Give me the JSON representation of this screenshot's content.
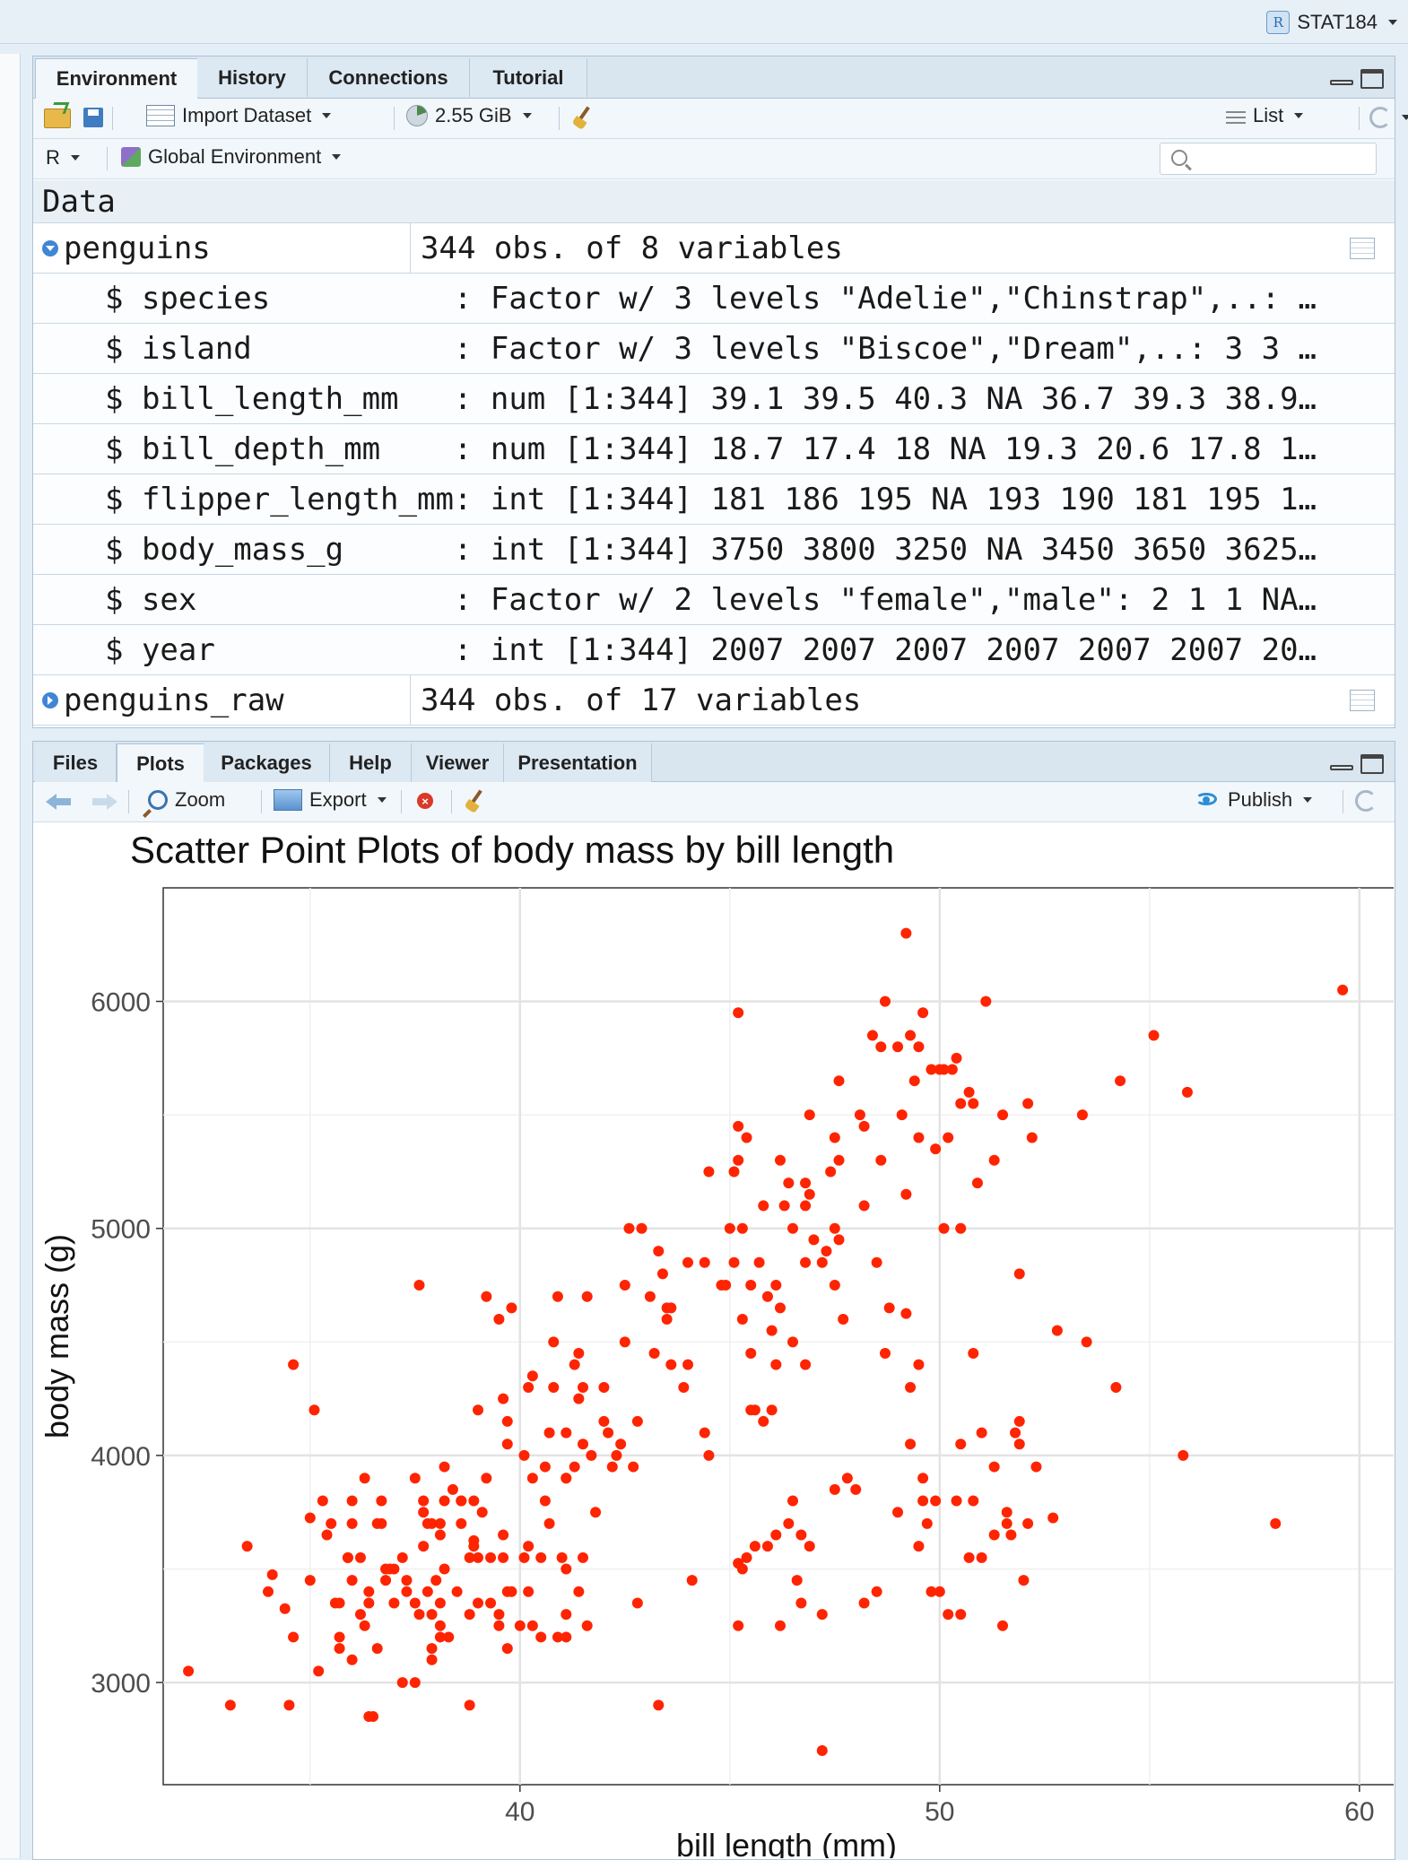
{
  "project": {
    "name": "STAT184"
  },
  "env_pane": {
    "tabs": [
      "Environment",
      "History",
      "Connections",
      "Tutorial"
    ],
    "toolbar": {
      "import_label": "Import Dataset",
      "memory_label": "2.55 GiB",
      "view_mode": "List"
    },
    "language": "R",
    "scope": "Global Environment",
    "search_placeholder": "",
    "section_title": "Data",
    "objects": [
      {
        "name": "penguins",
        "description": "344 obs. of 8 variables",
        "expanded": true,
        "variables": [
          "$ species          : Factor w/ 3 levels \"Adelie\",\"Chinstrap\",..: …",
          "$ island           : Factor w/ 3 levels \"Biscoe\",\"Dream\",..: 3 3 …",
          "$ bill_length_mm   : num [1:344] 39.1 39.5 40.3 NA 36.7 39.3 38.9…",
          "$ bill_depth_mm    : num [1:344] 18.7 17.4 18 NA 19.3 20.6 17.8 1…",
          "$ flipper_length_mm: int [1:344] 181 186 195 NA 193 190 181 195 1…",
          "$ body_mass_g      : int [1:344] 3750 3800 3250 NA 3450 3650 3625…",
          "$ sex              : Factor w/ 2 levels \"female\",\"male\": 2 1 1 NA…",
          "$ year             : int [1:344] 2007 2007 2007 2007 2007 2007 20…"
        ]
      },
      {
        "name": "penguins_raw",
        "description": "344 obs. of 17 variables",
        "expanded": false
      }
    ]
  },
  "plot_pane": {
    "tabs": [
      "Files",
      "Plots",
      "Packages",
      "Help",
      "Viewer",
      "Presentation"
    ],
    "toolbar": {
      "zoom_label": "Zoom",
      "export_label": "Export",
      "publish_label": "Publish"
    }
  },
  "chart_data": {
    "type": "scatter",
    "title": "Scatter Point Plots of body mass by bill length",
    "xlabel": "bill length (mm)",
    "ylabel": "body mass (g)",
    "xlim": [
      31.5,
      61.2
    ],
    "ylim": [
      2550,
      6500
    ],
    "xticks": [
      40,
      50,
      60
    ],
    "yticks": [
      3000,
      4000,
      5000,
      6000
    ],
    "grid": true,
    "point_color": "#ff2400",
    "points": [
      [
        32.1,
        3050
      ],
      [
        33.1,
        2900
      ],
      [
        33.5,
        3600
      ],
      [
        34.0,
        3400
      ],
      [
        34.1,
        3475
      ],
      [
        34.4,
        3325
      ],
      [
        34.5,
        2900
      ],
      [
        34.6,
        4400
      ],
      [
        34.6,
        3200
      ],
      [
        35.0,
        3450
      ],
      [
        35.0,
        3725
      ],
      [
        35.1,
        4200
      ],
      [
        35.2,
        3050
      ],
      [
        35.3,
        3800
      ],
      [
        35.5,
        3700
      ],
      [
        35.6,
        3350
      ],
      [
        35.7,
        3150
      ],
      [
        35.7,
        3350
      ],
      [
        35.9,
        3550
      ],
      [
        36.0,
        3100
      ],
      [
        36.0,
        3450
      ],
      [
        36.0,
        3800
      ],
      [
        36.0,
        3700
      ],
      [
        36.2,
        3300
      ],
      [
        36.2,
        3550
      ],
      [
        36.3,
        3250
      ],
      [
        36.4,
        3350
      ],
      [
        36.4,
        2850
      ],
      [
        36.5,
        2850
      ],
      [
        36.6,
        3150
      ],
      [
        36.7,
        3700
      ],
      [
        36.7,
        3800
      ],
      [
        36.8,
        3450
      ],
      [
        36.9,
        3500
      ],
      [
        37.0,
        3500
      ],
      [
        37.2,
        3000
      ],
      [
        37.3,
        3400
      ],
      [
        37.5,
        3350
      ],
      [
        37.5,
        3000
      ],
      [
        37.6,
        3300
      ],
      [
        37.6,
        4750
      ],
      [
        37.7,
        3600
      ],
      [
        37.7,
        3750
      ],
      [
        37.8,
        3700
      ],
      [
        37.8,
        3400
      ],
      [
        37.9,
        3150
      ],
      [
        37.9,
        3100
      ],
      [
        38.1,
        3700
      ],
      [
        38.1,
        3200
      ],
      [
        38.2,
        3950
      ],
      [
        38.3,
        3200
      ],
      [
        38.4,
        3850
      ],
      [
        38.5,
        3400
      ],
      [
        38.6,
        3800
      ],
      [
        38.8,
        3300
      ],
      [
        38.9,
        3600
      ],
      [
        38.9,
        3625
      ],
      [
        39.0,
        4200
      ],
      [
        39.0,
        3550
      ],
      [
        39.2,
        3900
      ],
      [
        39.3,
        3350
      ],
      [
        39.5,
        3250
      ],
      [
        39.5,
        4600
      ],
      [
        39.6,
        3550
      ],
      [
        39.7,
        3150
      ],
      [
        39.7,
        4150
      ],
      [
        39.8,
        4650
      ],
      [
        40.2,
        4300
      ],
      [
        40.3,
        3250
      ],
      [
        40.5,
        3550
      ],
      [
        40.6,
        3800
      ],
      [
        40.8,
        4300
      ],
      [
        40.9,
        4700
      ],
      [
        41.0,
        3550
      ],
      [
        41.1,
        3900
      ],
      [
        41.3,
        3950
      ],
      [
        41.4,
        4250
      ],
      [
        41.5,
        3550
      ],
      [
        42.0,
        4150
      ],
      [
        42.2,
        3950
      ],
      [
        42.4,
        4050
      ],
      [
        42.5,
        4500
      ],
      [
        42.7,
        3950
      ],
      [
        42.8,
        3350
      ],
      [
        43.2,
        4450
      ],
      [
        43.3,
        2900
      ],
      [
        43.5,
        4600
      ],
      [
        43.6,
        4650
      ],
      [
        44.1,
        3450
      ],
      [
        44.5,
        4000
      ],
      [
        45.1,
        4850
      ],
      [
        45.2,
        3250
      ],
      [
        45.5,
        4200
      ],
      [
        45.8,
        4150
      ],
      [
        46.2,
        3250
      ],
      [
        46.5,
        4500
      ],
      [
        46.8,
        4400
      ],
      [
        47.2,
        2700
      ],
      [
        47.5,
        3850
      ],
      [
        48.2,
        3350
      ],
      [
        48.5,
        3400
      ],
      [
        49.0,
        3750
      ],
      [
        49.5,
        3600
      ],
      [
        49.7,
        3700
      ],
      [
        50.0,
        3400
      ],
      [
        50.5,
        3300
      ],
      [
        50.8,
        3800
      ],
      [
        51.3,
        3650
      ],
      [
        51.7,
        3650
      ],
      [
        52.0,
        3450
      ],
      [
        52.7,
        3725
      ],
      [
        55.8,
        4000
      ],
      [
        58.0,
        3700
      ],
      [
        59.6,
        6050
      ],
      [
        53.4,
        5500
      ],
      [
        54.3,
        5650
      ],
      [
        55.1,
        5850
      ],
      [
        55.9,
        5600
      ],
      [
        49.2,
        6300
      ],
      [
        48.7,
        6000
      ],
      [
        49.6,
        5950
      ],
      [
        51.1,
        6000
      ],
      [
        45.2,
        5950
      ],
      [
        48.4,
        5850
      ],
      [
        49.3,
        5850
      ],
      [
        49.5,
        5800
      ],
      [
        48.6,
        5800
      ],
      [
        50.0,
        5700
      ],
      [
        50.4,
        5750
      ],
      [
        49.8,
        5700
      ],
      [
        50.1,
        5700
      ],
      [
        47.6,
        5650
      ],
      [
        49.4,
        5650
      ],
      [
        50.5,
        5550
      ],
      [
        51.5,
        5500
      ],
      [
        52.1,
        5550
      ],
      [
        52.2,
        5400
      ],
      [
        50.2,
        5400
      ],
      [
        46.9,
        5500
      ],
      [
        49.1,
        5500
      ],
      [
        48.1,
        5500
      ],
      [
        47.5,
        5400
      ],
      [
        50.8,
        5550
      ],
      [
        51.3,
        5300
      ],
      [
        50.9,
        5200
      ],
      [
        49.9,
        5350
      ],
      [
        45.2,
        5300
      ],
      [
        46.2,
        5300
      ],
      [
        45.1,
        5250
      ],
      [
        44.5,
        5250
      ],
      [
        46.4,
        5200
      ],
      [
        46.8,
        5200
      ],
      [
        47.4,
        5250
      ],
      [
        48.2,
        5100
      ],
      [
        49.2,
        5150
      ],
      [
        46.9,
        5150
      ],
      [
        45.0,
        5000
      ],
      [
        45.3,
        5000
      ],
      [
        46.5,
        5000
      ],
      [
        47.0,
        4950
      ],
      [
        47.3,
        4900
      ],
      [
        47.6,
        4950
      ],
      [
        48.5,
        4850
      ],
      [
        50.1,
        5000
      ],
      [
        50.5,
        5000
      ],
      [
        42.9,
        5000
      ],
      [
        43.3,
        4900
      ],
      [
        44.4,
        4850
      ],
      [
        45.7,
        4850
      ],
      [
        46.8,
        4850
      ],
      [
        47.2,
        4850
      ],
      [
        45.5,
        4750
      ],
      [
        46.1,
        4750
      ],
      [
        47.5,
        4750
      ],
      [
        43.1,
        4700
      ],
      [
        43.5,
        4650
      ],
      [
        44.9,
        4750
      ],
      [
        45.9,
        4700
      ],
      [
        48.8,
        4650
      ],
      [
        47.7,
        4600
      ],
      [
        49.2,
        4625
      ],
      [
        49.5,
        4400
      ],
      [
        48.7,
        4450
      ],
      [
        51.9,
        4800
      ],
      [
        52.8,
        4550
      ],
      [
        53.5,
        4500
      ],
      [
        54.2,
        4300
      ],
      [
        50.8,
        4450
      ],
      [
        49.3,
        4300
      ],
      [
        46.1,
        4400
      ],
      [
        45.5,
        4450
      ],
      [
        46.0,
        4200
      ],
      [
        45.6,
        4200
      ],
      [
        44.0,
        4400
      ],
      [
        43.9,
        4300
      ],
      [
        41.3,
        4400
      ],
      [
        40.3,
        4350
      ],
      [
        41.5,
        4300
      ],
      [
        42.0,
        4300
      ],
      [
        44.4,
        4100
      ],
      [
        47.8,
        3900
      ],
      [
        48.0,
        3850
      ],
      [
        49.3,
        4050
      ],
      [
        50.5,
        4050
      ],
      [
        51.0,
        4100
      ],
      [
        51.8,
        4100
      ],
      [
        51.9,
        4150
      ],
      [
        52.3,
        3950
      ],
      [
        51.9,
        4050
      ],
      [
        51.3,
        3950
      ],
      [
        51.6,
        3750
      ],
      [
        50.4,
        3800
      ],
      [
        49.6,
        3800
      ],
      [
        49.6,
        3900
      ],
      [
        49.9,
        3800
      ],
      [
        46.5,
        3800
      ],
      [
        46.4,
        3700
      ],
      [
        46.7,
        3650
      ],
      [
        46.9,
        3600
      ],
      [
        46.1,
        3650
      ],
      [
        45.6,
        3600
      ],
      [
        45.4,
        3550
      ],
      [
        45.3,
        3500
      ],
      [
        45.2,
        3525
      ],
      [
        45.9,
        3600
      ],
      [
        46.6,
        3450
      ],
      [
        46.7,
        3350
      ],
      [
        47.2,
        3300
      ],
      [
        50.2,
        3300
      ],
      [
        49.8,
        3400
      ],
      [
        51.5,
        3250
      ],
      [
        51.0,
        3550
      ],
      [
        51.6,
        3700
      ],
      [
        52.1,
        3700
      ],
      [
        50.7,
        3550
      ],
      [
        41.1,
        3200
      ],
      [
        40.9,
        3200
      ],
      [
        40.5,
        3200
      ],
      [
        40.0,
        3250
      ],
      [
        40.2,
        3400
      ],
      [
        39.0,
        3350
      ],
      [
        38.1,
        3250
      ],
      [
        38.8,
        2900
      ],
      [
        39.5,
        3300
      ],
      [
        39.1,
        3750
      ],
      [
        39.3,
        3550
      ],
      [
        39.8,
        3400
      ],
      [
        40.1,
        3550
      ],
      [
        41.1,
        3500
      ],
      [
        41.4,
        3400
      ],
      [
        41.1,
        3300
      ],
      [
        41.6,
        3250
      ],
      [
        40.7,
        3700
      ],
      [
        40.6,
        3950
      ],
      [
        41.8,
        3750
      ],
      [
        41.7,
        4000
      ],
      [
        42.3,
        4000
      ],
      [
        42.1,
        4100
      ],
      [
        41.1,
        4100
      ],
      [
        41.4,
        4450
      ],
      [
        40.3,
        3900
      ],
      [
        41.1,
        3900
      ],
      [
        39.6,
        3650
      ],
      [
        40.2,
        3600
      ],
      [
        38.6,
        3700
      ],
      [
        38.8,
        3550
      ],
      [
        38.2,
        3800
      ],
      [
        37.9,
        3300
      ],
      [
        37.5,
        3900
      ],
      [
        36.6,
        3700
      ],
      [
        37.0,
        3350
      ],
      [
        36.4,
        3400
      ],
      [
        35.7,
        3200
      ],
      [
        38.2,
        3500
      ],
      [
        39.2,
        4700
      ],
      [
        39.6,
        4250
      ],
      [
        40.1,
        4000
      ],
      [
        42.5,
        4750
      ],
      [
        43.4,
        4800
      ],
      [
        44.0,
        4850
      ],
      [
        42.6,
        5000
      ],
      [
        46.8,
        5100
      ],
      [
        47.6,
        5300
      ],
      [
        48.2,
        5450
      ],
      [
        49.0,
        5800
      ],
      [
        50.3,
        5700
      ],
      [
        50.7,
        5600
      ],
      [
        49.5,
        5400
      ],
      [
        48.6,
        5300
      ],
      [
        47.5,
        5000
      ],
      [
        45.8,
        5100
      ],
      [
        45.4,
        5400
      ],
      [
        46.3,
        5100
      ],
      [
        45.2,
        5450
      ],
      [
        44.8,
        4750
      ],
      [
        46.0,
        4550
      ],
      [
        45.3,
        4600
      ],
      [
        46.2,
        4650
      ],
      [
        43.6,
        4400
      ],
      [
        41.6,
        4700
      ],
      [
        39.7,
        4050
      ],
      [
        40.8,
        4500
      ],
      [
        42.8,
        4150
      ],
      [
        41.5,
        4050
      ],
      [
        40.7,
        4100
      ],
      [
        38.6,
        3800
      ],
      [
        38.1,
        3350
      ],
      [
        37.2,
        3550
      ],
      [
        36.3,
        3900
      ],
      [
        35.4,
        3650
      ],
      [
        35.9,
        3550
      ],
      [
        37.3,
        3450
      ],
      [
        37.7,
        3800
      ],
      [
        36.8,
        3500
      ],
      [
        38.0,
        3450
      ],
      [
        38.9,
        3800
      ],
      [
        39.7,
        3400
      ],
      [
        37.9,
        3700
      ],
      [
        38.1,
        3650
      ]
    ]
  }
}
